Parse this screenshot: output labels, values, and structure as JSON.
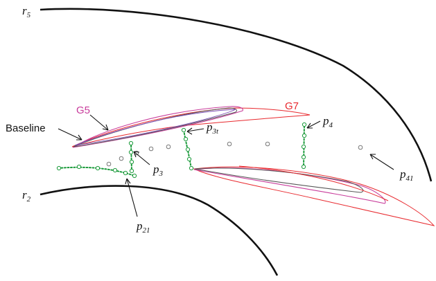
{
  "labels": {
    "r5": {
      "base": "r",
      "sub": "5"
    },
    "r2": {
      "base": "r",
      "sub": "2"
    },
    "baseline": "Baseline",
    "g5": "G5",
    "g7": "G7",
    "p3t": {
      "base": "p",
      "sub": "3t"
    },
    "p4": {
      "base": "p",
      "sub": "4"
    },
    "p3": {
      "base": "p",
      "sub": "3"
    },
    "p41": {
      "base": "p",
      "sub": "41"
    },
    "p21": {
      "base": "p",
      "sub": "21"
    }
  },
  "colors": {
    "g5": "#c83c9b",
    "g7": "#e8282d",
    "baseline": "#555555",
    "rake": "#1a9a3a",
    "wall": "#111111"
  }
}
